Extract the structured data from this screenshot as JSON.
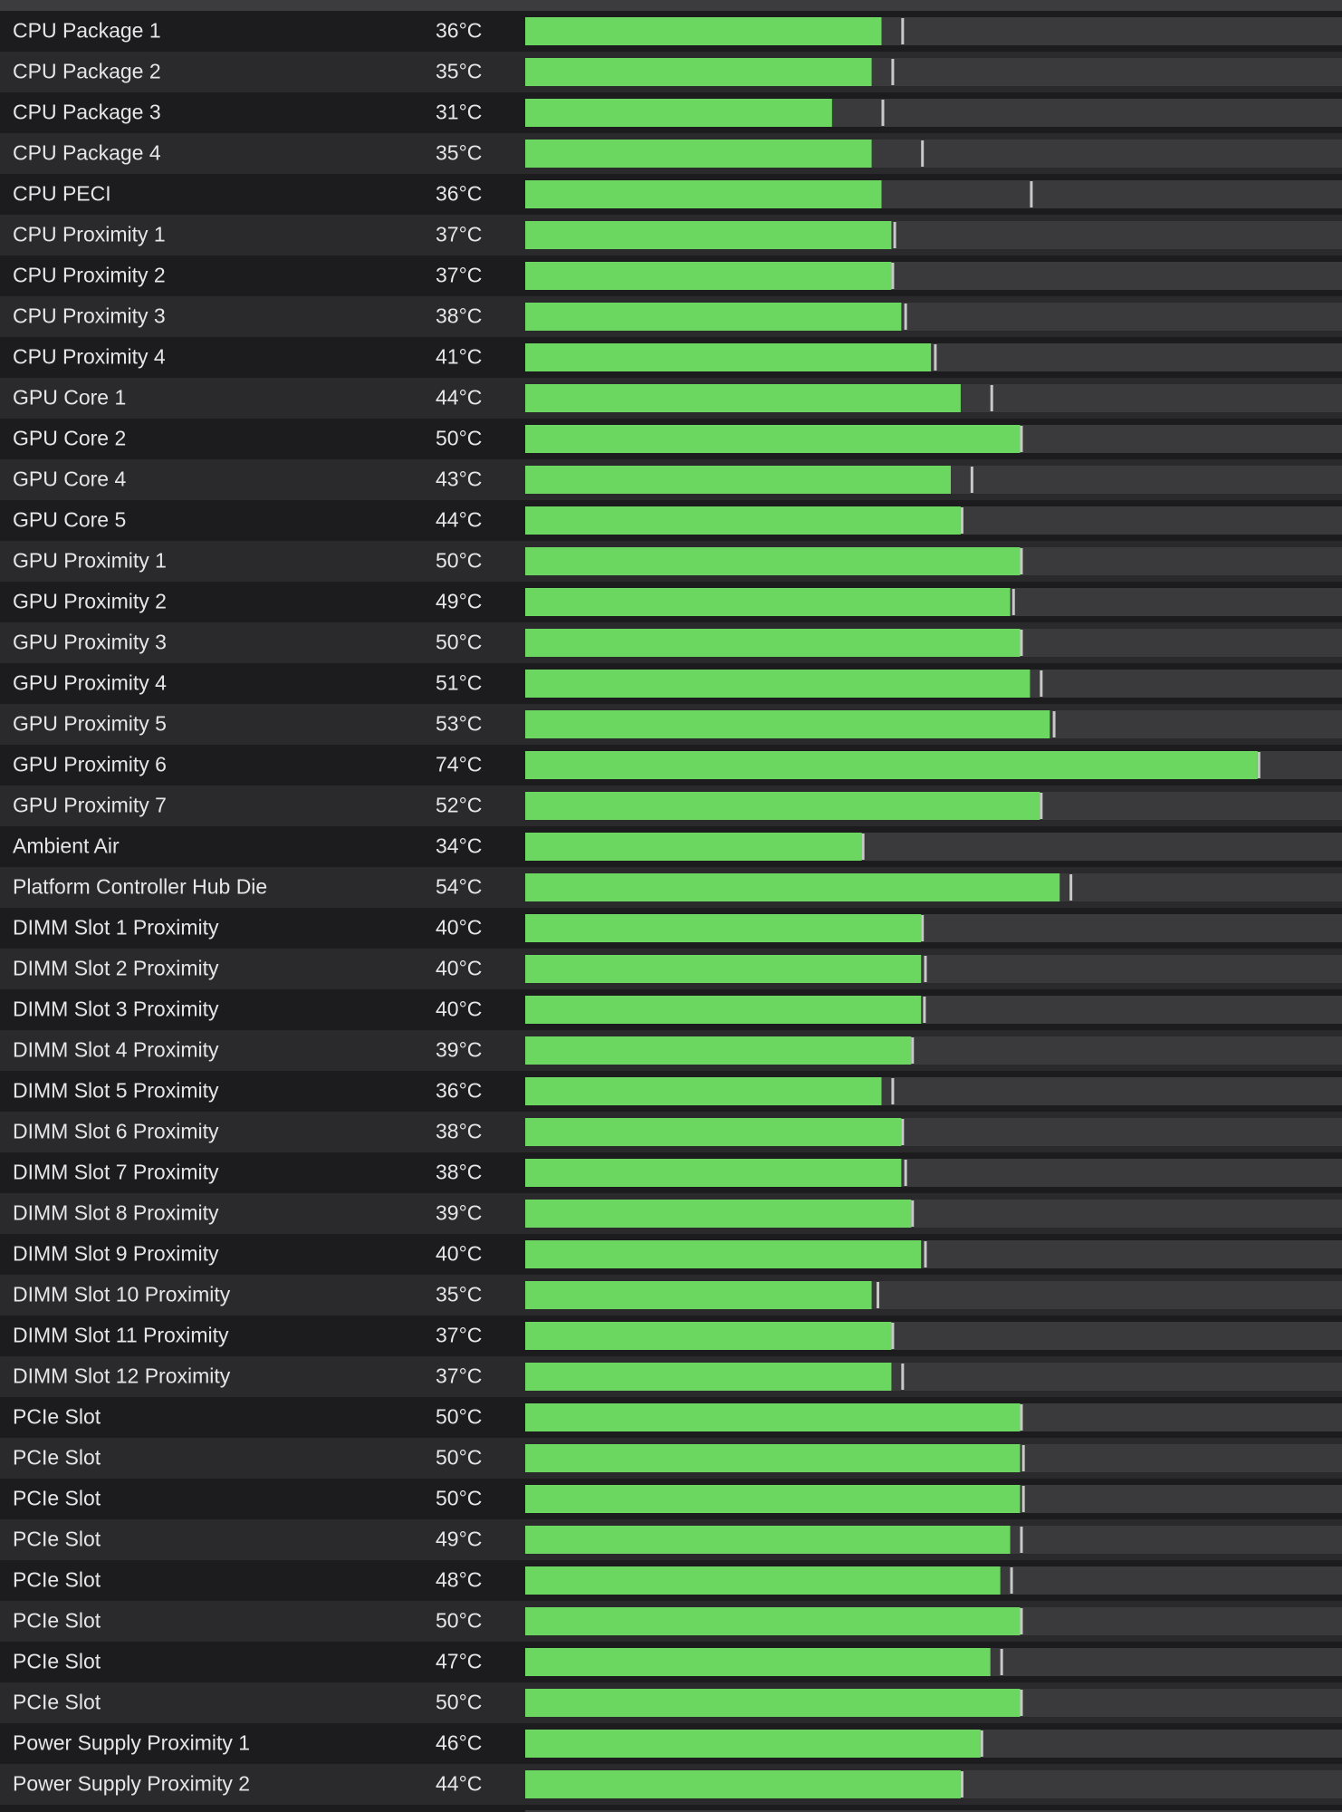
{
  "rows": [
    {
      "name": "CPU Package 1",
      "value_label": "36°C",
      "value": 36,
      "max": 38
    },
    {
      "name": "CPU Package 2",
      "value_label": "35°C",
      "value": 35,
      "max": 37
    },
    {
      "name": "CPU Package 3",
      "value_label": "31°C",
      "value": 31,
      "max": 36
    },
    {
      "name": "CPU Package 4",
      "value_label": "35°C",
      "value": 35,
      "max": 40
    },
    {
      "name": "CPU PECI",
      "value_label": "36°C",
      "value": 36,
      "max": 51
    },
    {
      "name": "CPU Proximity 1",
      "value_label": "37°C",
      "value": 37,
      "max": 37.2
    },
    {
      "name": "CPU Proximity 2",
      "value_label": "37°C",
      "value": 37,
      "max": 37
    },
    {
      "name": "CPU Proximity 3",
      "value_label": "38°C",
      "value": 38,
      "max": 38.3
    },
    {
      "name": "CPU Proximity 4",
      "value_label": "41°C",
      "value": 41,
      "max": 41.3
    },
    {
      "name": "GPU Core 1",
      "value_label": "44°C",
      "value": 44,
      "max": 47
    },
    {
      "name": "GPU Core 2",
      "value_label": "50°C",
      "value": 50,
      "max": 50
    },
    {
      "name": "GPU Core 4",
      "value_label": "43°C",
      "value": 43,
      "max": 45
    },
    {
      "name": "GPU Core 5",
      "value_label": "44°C",
      "value": 44,
      "max": 44
    },
    {
      "name": "GPU Proximity 1",
      "value_label": "50°C",
      "value": 50,
      "max": 50
    },
    {
      "name": "GPU Proximity 2",
      "value_label": "49°C",
      "value": 49,
      "max": 49.2
    },
    {
      "name": "GPU Proximity 3",
      "value_label": "50°C",
      "value": 50,
      "max": 50
    },
    {
      "name": "GPU Proximity 4",
      "value_label": "51°C",
      "value": 51,
      "max": 52
    },
    {
      "name": "GPU Proximity 5",
      "value_label": "53°C",
      "value": 53,
      "max": 53.3
    },
    {
      "name": "GPU Proximity 6",
      "value_label": "74°C",
      "value": 74,
      "max": 74
    },
    {
      "name": "GPU Proximity 7",
      "value_label": "52°C",
      "value": 52,
      "max": 52
    },
    {
      "name": "Ambient Air",
      "value_label": "34°C",
      "value": 34,
      "max": 34
    },
    {
      "name": "Platform Controller Hub Die",
      "value_label": "54°C",
      "value": 54,
      "max": 55
    },
    {
      "name": "DIMM Slot 1 Proximity",
      "value_label": "40°C",
      "value": 40,
      "max": 40
    },
    {
      "name": "DIMM Slot 2 Proximity",
      "value_label": "40°C",
      "value": 40,
      "max": 40.3
    },
    {
      "name": "DIMM Slot 3 Proximity",
      "value_label": "40°C",
      "value": 40,
      "max": 40.2
    },
    {
      "name": "DIMM Slot 4 Proximity",
      "value_label": "39°C",
      "value": 39,
      "max": 39
    },
    {
      "name": "DIMM Slot 5 Proximity",
      "value_label": "36°C",
      "value": 36,
      "max": 37
    },
    {
      "name": "DIMM Slot 6 Proximity",
      "value_label": "38°C",
      "value": 38,
      "max": 38
    },
    {
      "name": "DIMM Slot 7 Proximity",
      "value_label": "38°C",
      "value": 38,
      "max": 38.3
    },
    {
      "name": "DIMM Slot 8 Proximity",
      "value_label": "39°C",
      "value": 39,
      "max": 39
    },
    {
      "name": "DIMM Slot 9 Proximity",
      "value_label": "40°C",
      "value": 40,
      "max": 40.3
    },
    {
      "name": "DIMM Slot 10 Proximity",
      "value_label": "35°C",
      "value": 35,
      "max": 35.5
    },
    {
      "name": "DIMM Slot 11 Proximity",
      "value_label": "37°C",
      "value": 37,
      "max": 37
    },
    {
      "name": "DIMM Slot 12 Proximity",
      "value_label": "37°C",
      "value": 37,
      "max": 38
    },
    {
      "name": "PCIe Slot",
      "value_label": "50°C",
      "value": 50,
      "max": 50
    },
    {
      "name": "PCIe Slot",
      "value_label": "50°C",
      "value": 50,
      "max": 50.2
    },
    {
      "name": "PCIe Slot",
      "value_label": "50°C",
      "value": 50,
      "max": 50.2
    },
    {
      "name": "PCIe Slot",
      "value_label": "49°C",
      "value": 49,
      "max": 50
    },
    {
      "name": "PCIe Slot",
      "value_label": "48°C",
      "value": 48,
      "max": 49
    },
    {
      "name": "PCIe Slot",
      "value_label": "50°C",
      "value": 50,
      "max": 50
    },
    {
      "name": "PCIe Slot",
      "value_label": "47°C",
      "value": 47,
      "max": 48
    },
    {
      "name": "PCIe Slot",
      "value_label": "50°C",
      "value": 50,
      "max": 50
    },
    {
      "name": "Power Supply Proximity 1",
      "value_label": "46°C",
      "value": 46,
      "max": 46
    },
    {
      "name": "Power Supply Proximity 2",
      "value_label": "44°C",
      "value": 44,
      "max": 44
    }
  ]
}
